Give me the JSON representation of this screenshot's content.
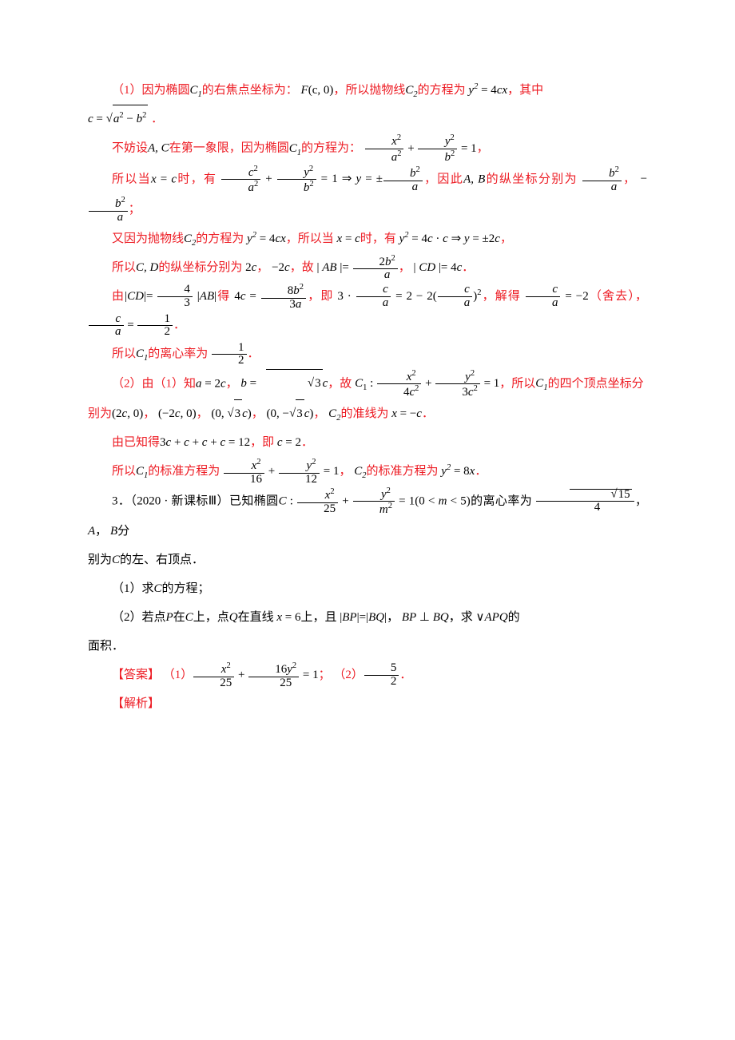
{
  "colors": {
    "highlight": "#ed1b23",
    "text_black": "#000000",
    "background": "#ffffff"
  },
  "t": {
    "p1a": "（1）因为椭圆",
    "p1b": "的右焦点坐标为：",
    "p1c": "，所以抛物线",
    "p1d": "的方程为",
    "p1e": "，其中",
    "p1f": "．",
    "p2a": "不妨设",
    "p2b": "在第一象限，因为椭圆",
    "p2c": "的方程为：",
    "p2d": "，",
    "p3a": "所以当",
    "p3b": "时，有",
    "p3c": "，因此",
    "p3d": "的纵坐标分别为",
    "p3e": "，",
    "p3f": "；",
    "p4a": "又因为抛物线",
    "p4b": "的方程为",
    "p4c": "，所以当",
    "p4d": "时，有",
    "p4e": "，",
    "p5a": "所以",
    "p5b": "的纵坐标分别为",
    "p5c": "，",
    "p5d": "，故",
    "p5e": "，",
    "p5f": "．",
    "p6a": "由",
    "p6b": "得",
    "p6c": "，即",
    "p6d": "，解得",
    "p6e": "（舍去），",
    "p6f": "．",
    "p7a": "所以",
    "p7b": "的离心率为",
    "p7c": "．",
    "p8a": "（2）由（1）知",
    "p8b": "，",
    "p8c": "，故",
    "p8d": "，所以",
    "p8e": "的四个顶点坐标分",
    "p9a": "别为",
    "p9b": "，",
    "p9c": "，",
    "p9d": "，",
    "p9e": "，",
    "p9f": "的准线为",
    "p9g": "．",
    "p10a": "由已知得",
    "p10b": "，即",
    "p10c": "．",
    "p11a": "所以",
    "p11b": "的标准方程为",
    "p11c": "，",
    "p11d": "的标准方程为",
    "p11e": "．",
    "q1a": "3．（2020 · 新课标Ⅲ）已知椭圆",
    "q1b": "的离心率为",
    "q1c": "，",
    "q1d": "，",
    "q1e": "分",
    "q2a": "别为",
    "q2b": "的左、右顶点．",
    "q3a": "（1）求",
    "q3b": "的方程；",
    "q4a": "（2）若点",
    "q4b": "在",
    "q4c": "上，点",
    "q4d": "在直线",
    "q4e": "上，且",
    "q4f": "，",
    "q4g": "，求",
    "q4h": "的",
    "q5a": "面积．",
    "ans_a": "【答案】 （1）",
    "ans_b": "；",
    "ans_sep": " （2）",
    "ans_d": "．",
    "jiexi": "【解析】"
  }
}
